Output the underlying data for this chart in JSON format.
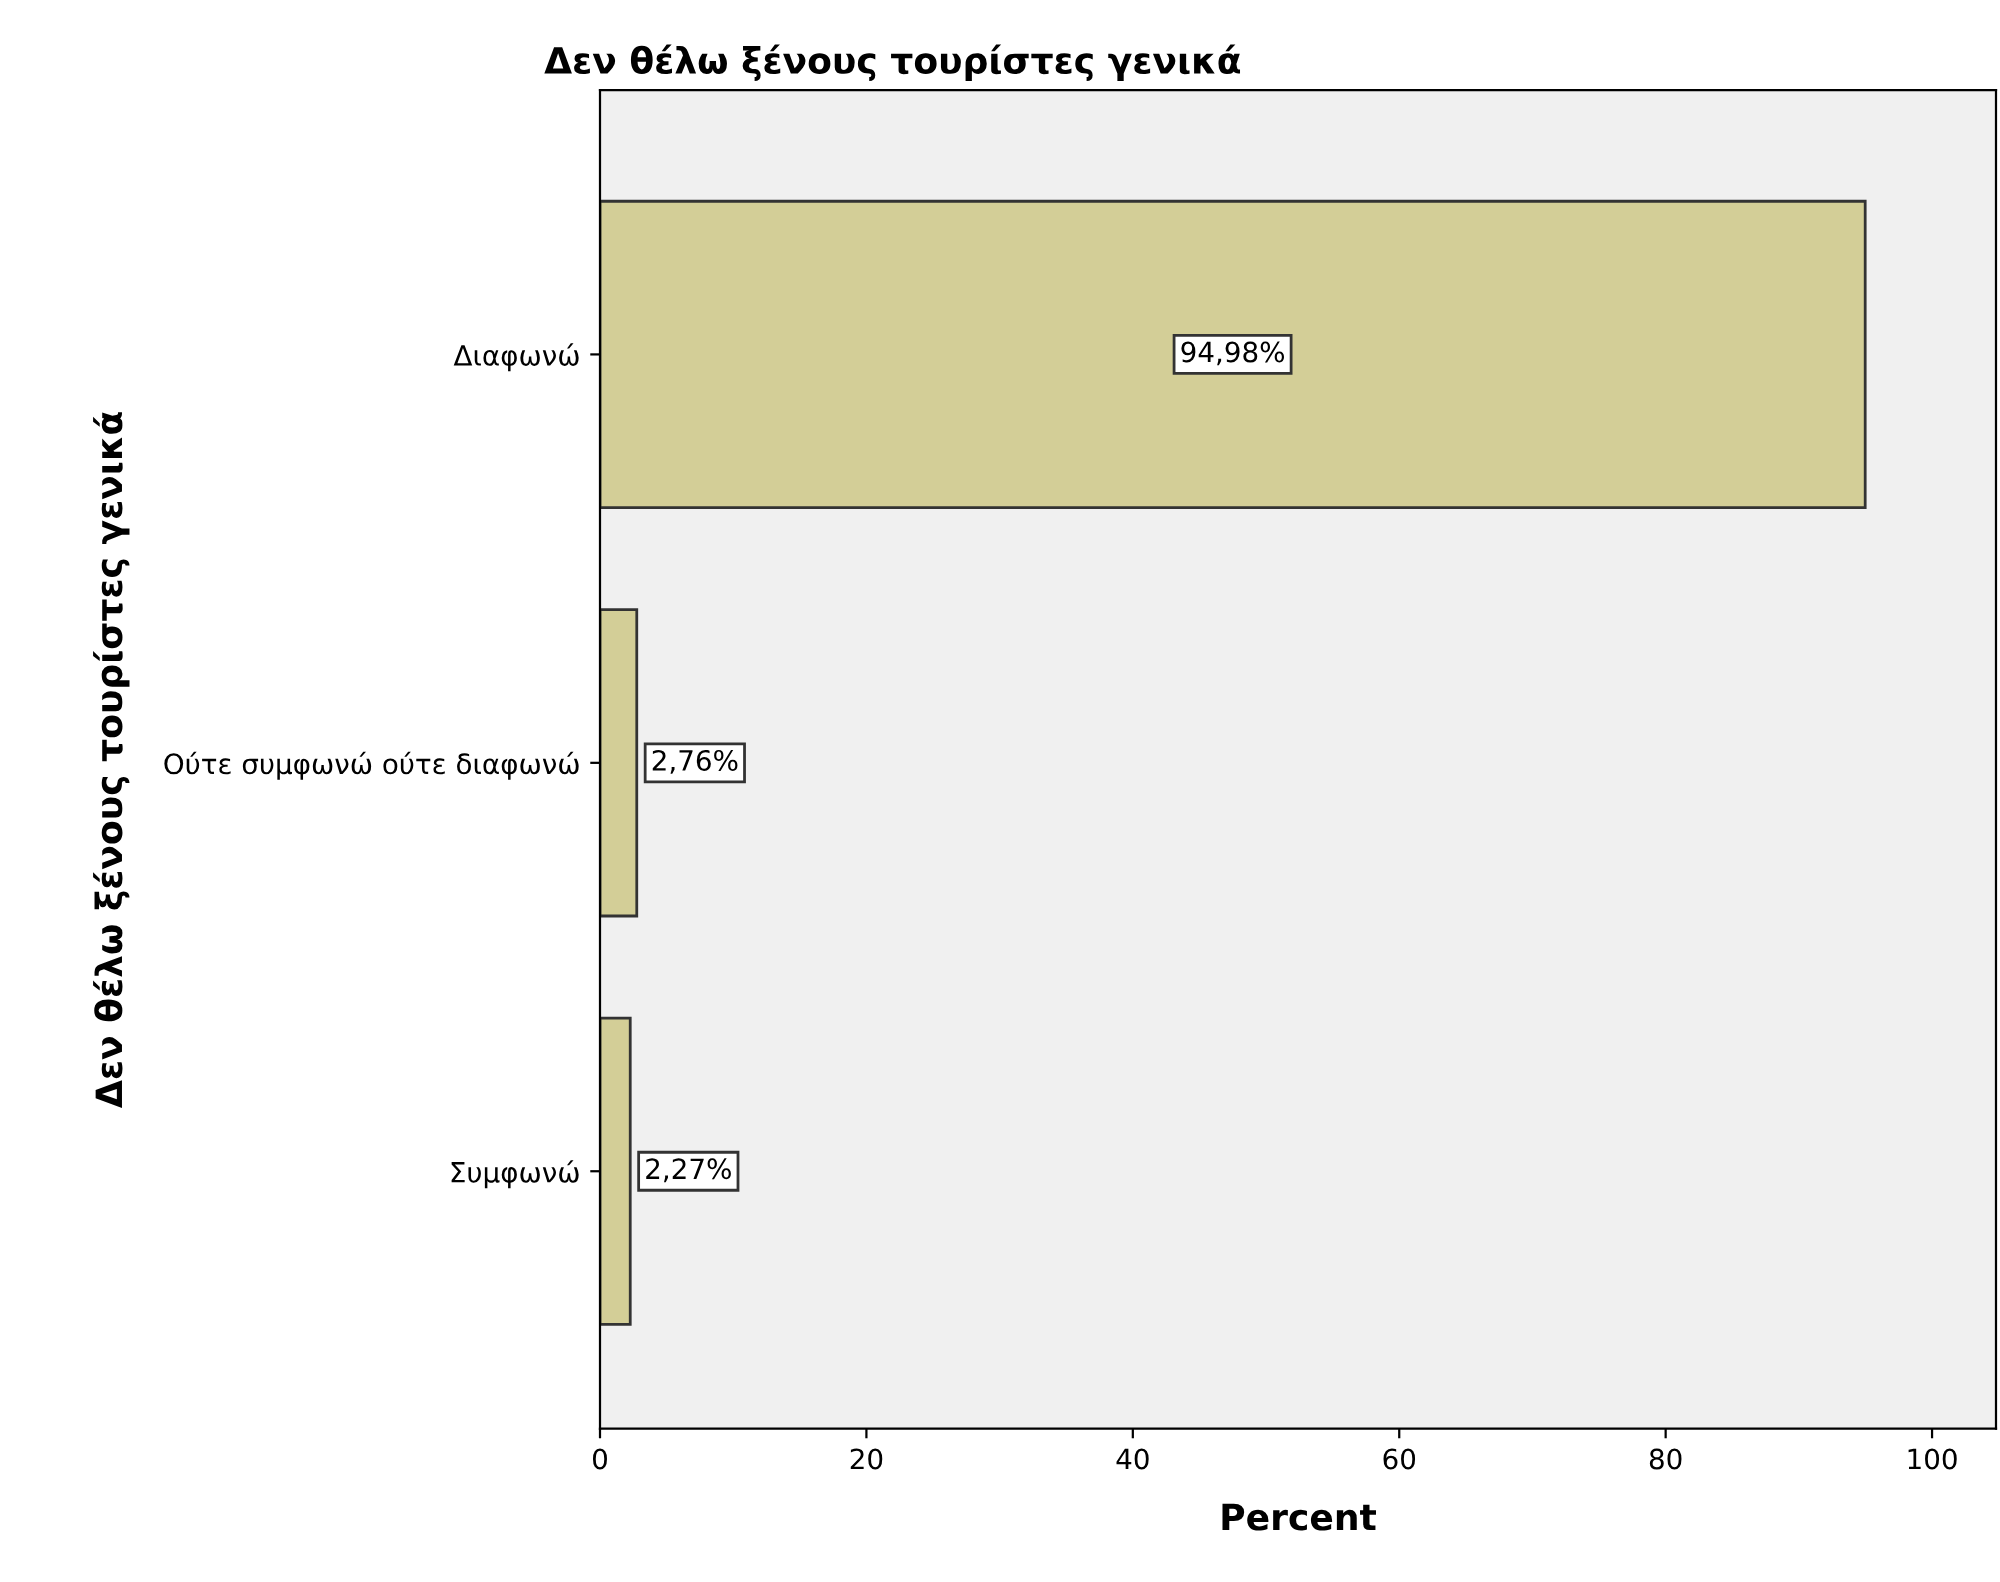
{
  "chart_data": {
    "type": "bar",
    "orientation": "horizontal",
    "title": "Δεν θέλω ξένους τουρίστες γενικά",
    "xlabel": "Percent",
    "ylabel": "Δεν θέλω ξένους τουρίστες γενικά",
    "categories": [
      "Διαφωνώ",
      "Ούτε συμφωνώ ούτε διαφωνώ",
      "Συμφωνώ"
    ],
    "values": [
      94.98,
      2.76,
      2.27
    ],
    "value_labels": [
      "94,98%",
      "2,76%",
      "2,27%"
    ],
    "color": "#d3ce97",
    "xlim": [
      0,
      104.8
    ],
    "xticks": [
      0,
      20,
      40,
      60,
      80,
      100
    ],
    "grid": false,
    "legend": false
  }
}
